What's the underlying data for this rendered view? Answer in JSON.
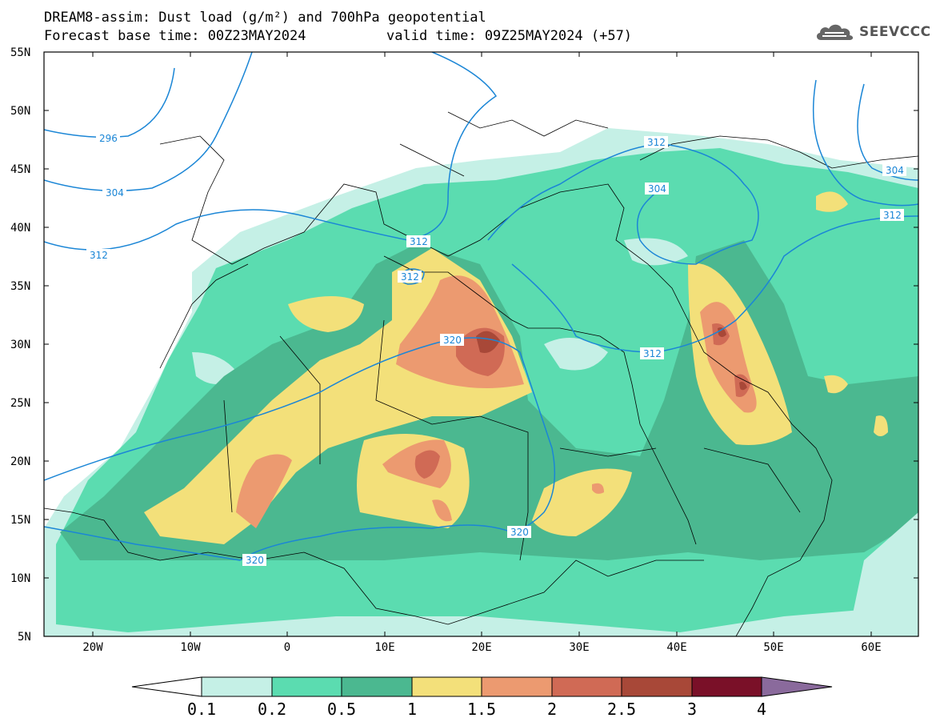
{
  "title": {
    "line1": "DREAM8-assim: Dust load (g/m²) and 700hPa geopotential",
    "line2": "Forecast base time: 00Z23MAY2024",
    "valid": "valid time: 09Z25MAY2024 (+57)"
  },
  "logo": {
    "text": "SEEVCCC",
    "icon": "cloud-icon"
  },
  "map": {
    "lat_labels": [
      "55N",
      "50N",
      "45N",
      "40N",
      "35N",
      "30N",
      "25N",
      "20N",
      "15N",
      "10N",
      "5N"
    ],
    "lon_labels": [
      "20W",
      "10W",
      "0",
      "10E",
      "20E",
      "30E",
      "40E",
      "50E",
      "60E"
    ],
    "contour_labels": [
      "296",
      "304",
      "312",
      "312",
      "312",
      "320",
      "312",
      "304",
      "312",
      "304",
      "312",
      "320",
      "320"
    ],
    "contour_color": "#1b86d6"
  },
  "colorbar": {
    "colors": [
      "#c5f0e6",
      "#5bdcb0",
      "#4bb890",
      "#f3e07a",
      "#ec9a70",
      "#d06a55",
      "#a84838",
      "#7a1028",
      "#8a6a9c",
      "#9a9a9a"
    ],
    "labels": [
      "0.1",
      "0.2",
      "0.5",
      "1",
      "1.5",
      "2",
      "2.5",
      "3",
      "4"
    ]
  }
}
